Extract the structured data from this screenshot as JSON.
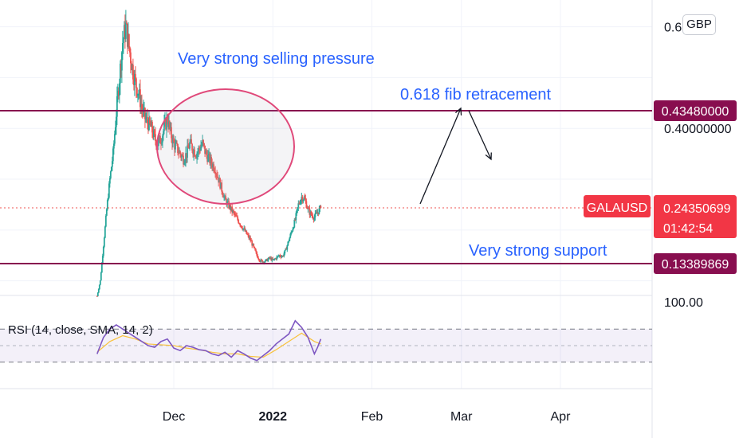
{
  "currency_button": "GBP",
  "symbol": "GALAUSD",
  "countdown": "01:42:54",
  "colors": {
    "up": "#26a69a",
    "down": "#ef5350",
    "level": "#880e4f",
    "annotation": "#2962ff",
    "rsi": "#7e57c2",
    "rsi_sma": "#f9c23c",
    "price_label": "#f23645"
  },
  "chart_data": {
    "type": "candlestick",
    "x_ticks": [
      {
        "label": "Dec",
        "day": 30
      },
      {
        "label": "2022",
        "day": 61
      },
      {
        "label": "Feb",
        "day": 92
      },
      {
        "label": "Mar",
        "day": 120
      },
      {
        "label": "Apr",
        "day": 151
      }
    ],
    "y_axis_labels": [
      {
        "label": "0.6",
        "value": 0.6
      },
      {
        "label": "0.40000000",
        "value": 0.4
      },
      {
        "label": "100.00",
        "value": 100.0
      }
    ],
    "levels": [
      {
        "label": "0.43480000",
        "value": 0.4348
      },
      {
        "label": "0.13389869",
        "value": 0.13389869
      }
    ],
    "last_price": {
      "label": "0.24350699",
      "value": 0.24350699
    },
    "annotations": [
      "Very strong selling pressure",
      "0.618 fib retracement",
      "Very strong support"
    ],
    "price_series": [
      [
        6,
        0.07
      ],
      [
        7,
        0.1
      ],
      [
        8,
        0.17
      ],
      [
        9,
        0.24
      ],
      [
        10,
        0.3
      ],
      [
        11,
        0.35
      ],
      [
        12,
        0.43
      ],
      [
        13,
        0.5
      ],
      [
        14,
        0.57
      ],
      [
        15,
        0.6
      ],
      [
        16,
        0.56
      ],
      [
        17,
        0.52
      ],
      [
        18,
        0.49
      ],
      [
        19,
        0.47
      ],
      [
        20,
        0.44
      ],
      [
        21,
        0.42
      ],
      [
        22,
        0.41
      ],
      [
        23,
        0.4
      ],
      [
        24,
        0.38
      ],
      [
        25,
        0.37
      ],
      [
        26,
        0.38
      ],
      [
        27,
        0.4
      ],
      [
        28,
        0.42
      ],
      [
        29,
        0.39
      ],
      [
        30,
        0.37
      ],
      [
        31,
        0.36
      ],
      [
        32,
        0.35
      ],
      [
        33,
        0.34
      ],
      [
        34,
        0.35
      ],
      [
        35,
        0.37
      ],
      [
        36,
        0.36
      ],
      [
        37,
        0.35
      ],
      [
        38,
        0.36
      ],
      [
        39,
        0.37
      ],
      [
        40,
        0.35
      ],
      [
        41,
        0.34
      ],
      [
        42,
        0.33
      ],
      [
        43,
        0.32
      ],
      [
        44,
        0.3
      ],
      [
        45,
        0.28
      ],
      [
        46,
        0.26
      ],
      [
        47,
        0.25
      ],
      [
        48,
        0.24
      ],
      [
        49,
        0.23
      ],
      [
        50,
        0.22
      ],
      [
        51,
        0.21
      ],
      [
        52,
        0.2
      ],
      [
        53,
        0.19
      ],
      [
        54,
        0.18
      ],
      [
        55,
        0.165
      ],
      [
        56,
        0.15
      ],
      [
        57,
        0.14
      ],
      [
        58,
        0.138
      ],
      [
        59,
        0.14
      ],
      [
        60,
        0.145
      ],
      [
        61,
        0.14
      ],
      [
        62,
        0.145
      ],
      [
        63,
        0.15
      ],
      [
        64,
        0.148
      ],
      [
        65,
        0.16
      ],
      [
        66,
        0.18
      ],
      [
        67,
        0.2
      ],
      [
        68,
        0.22
      ],
      [
        69,
        0.25
      ],
      [
        70,
        0.265
      ],
      [
        71,
        0.26
      ],
      [
        72,
        0.24
      ],
      [
        73,
        0.23
      ],
      [
        74,
        0.225
      ],
      [
        75,
        0.235
      ],
      [
        76,
        0.2435
      ]
    ],
    "rsi": {
      "label": "RSI (14, close, SMA, 14, 2)",
      "upper": 70,
      "middle": 50,
      "lower": 30,
      "rsi_series": [
        [
          6,
          40
        ],
        [
          8,
          60
        ],
        [
          10,
          70
        ],
        [
          12,
          75
        ],
        [
          14,
          70
        ],
        [
          16,
          65
        ],
        [
          18,
          60
        ],
        [
          20,
          55
        ],
        [
          22,
          50
        ],
        [
          24,
          48
        ],
        [
          26,
          55
        ],
        [
          28,
          58
        ],
        [
          30,
          47
        ],
        [
          32,
          44
        ],
        [
          34,
          50
        ],
        [
          36,
          48
        ],
        [
          38,
          45
        ],
        [
          40,
          44
        ],
        [
          42,
          40
        ],
        [
          44,
          38
        ],
        [
          46,
          42
        ],
        [
          48,
          36
        ],
        [
          50,
          44
        ],
        [
          52,
          40
        ],
        [
          54,
          35
        ],
        [
          56,
          32
        ],
        [
          58,
          38
        ],
        [
          60,
          44
        ],
        [
          62,
          52
        ],
        [
          64,
          58
        ],
        [
          66,
          64
        ],
        [
          68,
          80
        ],
        [
          70,
          72
        ],
        [
          72,
          60
        ],
        [
          74,
          40
        ],
        [
          75,
          48
        ],
        [
          76,
          58
        ]
      ],
      "sma_series": [
        [
          6,
          42
        ],
        [
          10,
          55
        ],
        [
          14,
          62
        ],
        [
          18,
          58
        ],
        [
          22,
          52
        ],
        [
          26,
          51
        ],
        [
          30,
          50
        ],
        [
          34,
          47
        ],
        [
          38,
          45
        ],
        [
          42,
          42
        ],
        [
          46,
          40
        ],
        [
          50,
          40
        ],
        [
          54,
          37
        ],
        [
          58,
          36
        ],
        [
          62,
          45
        ],
        [
          66,
          55
        ],
        [
          70,
          65
        ],
        [
          74,
          55
        ],
        [
          76,
          52
        ]
      ]
    }
  }
}
